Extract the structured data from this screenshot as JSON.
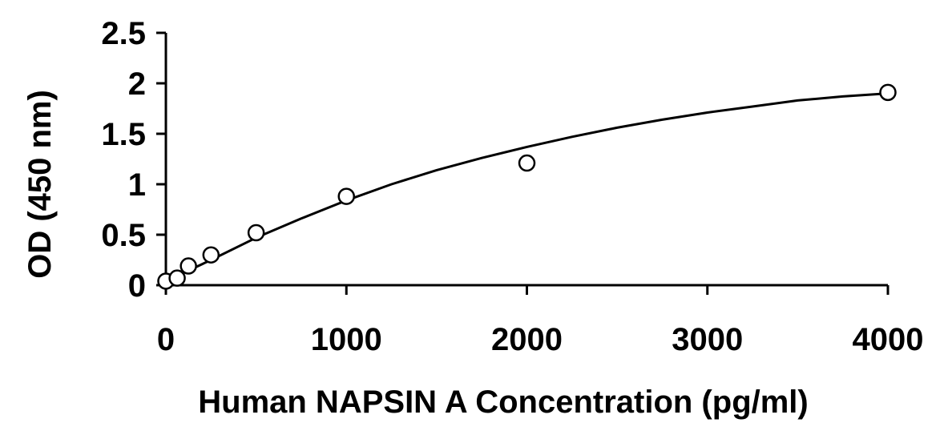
{
  "chart_data": {
    "type": "scatter",
    "title": "",
    "xlabel": "Human NAPSIN A Concentration (pg/ml)",
    "ylabel": "OD (450 nm)",
    "xlim": [
      0,
      4000
    ],
    "ylim": [
      0,
      2.5
    ],
    "xticks": [
      0,
      1000,
      2000,
      3000,
      4000
    ],
    "xtick_labels": [
      "0",
      "1000",
      "2000",
      "3000",
      "4000"
    ],
    "yticks": [
      0,
      0.5,
      1,
      1.5,
      2,
      2.5
    ],
    "ytick_labels": [
      "0",
      "0.5",
      "1",
      "1.5",
      "2",
      "2.5"
    ],
    "grid": false,
    "legend": "none",
    "series": [
      {
        "marker": "open-circle",
        "x": [
          0,
          62.5,
          125,
          250,
          500,
          1000,
          2000,
          4000
        ],
        "y": [
          0.04,
          0.07,
          0.19,
          0.3,
          0.52,
          0.88,
          1.21,
          1.91
        ]
      }
    ],
    "fit_curve": {
      "type": "smooth-fit",
      "x": [
        0,
        250,
        500,
        750,
        1000,
        1250,
        1500,
        1750,
        2000,
        2250,
        2500,
        2750,
        3000,
        3250,
        3500,
        3750,
        4000
      ],
      "y": [
        0.04,
        0.25,
        0.47,
        0.66,
        0.84,
        1.0,
        1.14,
        1.26,
        1.37,
        1.47,
        1.56,
        1.64,
        1.71,
        1.77,
        1.83,
        1.87,
        1.9
      ]
    },
    "colors": {
      "axis": "#000000",
      "marker_stroke": "#000000",
      "marker_fill": "#ffffff",
      "curve": "#000000"
    }
  }
}
